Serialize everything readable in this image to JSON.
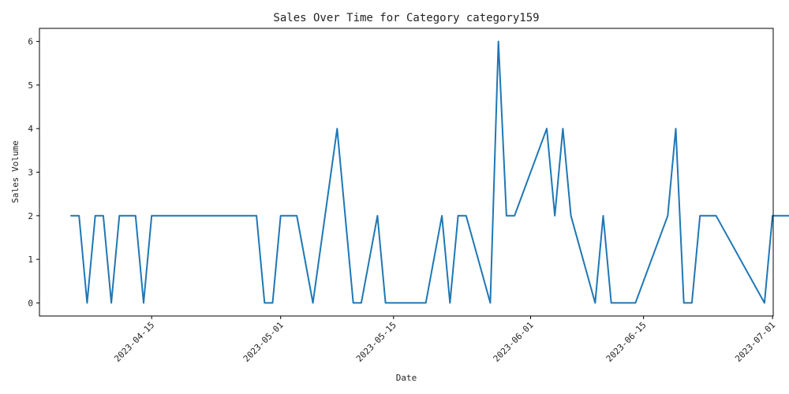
{
  "chart_data": {
    "type": "line",
    "title": "Sales Over Time for Category category159",
    "xlabel": "Date",
    "ylabel": "Sales Volume",
    "x_ticks": [
      "2023-04-15",
      "2023-05-01",
      "2023-05-15",
      "2023-06-01",
      "2023-06-15",
      "2023-07-01"
    ],
    "y_ticks": [
      0,
      1,
      2,
      3,
      4,
      5,
      6
    ],
    "xlim": [
      "2023-04-01",
      "2023-07-01"
    ],
    "ylim": [
      -0.3,
      6.3
    ],
    "grid": false,
    "color": "#1f77b4",
    "series": [
      {
        "x": [
          "2023-04-05",
          "2023-04-06",
          "2023-04-07",
          "2023-04-08",
          "2023-04-09",
          "2023-04-10",
          "2023-04-11",
          "2023-04-12",
          "2023-04-13",
          "2023-04-14",
          "2023-04-15",
          "2023-04-16",
          "2023-04-18",
          "2023-04-20",
          "2023-04-28",
          "2023-04-29",
          "2023-04-30",
          "2023-05-01",
          "2023-05-03",
          "2023-05-05",
          "2023-05-08",
          "2023-05-10",
          "2023-05-11",
          "2023-05-13",
          "2023-05-14",
          "2023-05-15",
          "2023-05-19",
          "2023-05-21",
          "2023-05-22",
          "2023-05-23",
          "2023-05-24",
          "2023-05-27",
          "2023-05-28",
          "2023-05-29",
          "2023-05-30",
          "2023-06-03",
          "2023-06-04",
          "2023-06-05",
          "2023-06-06",
          "2023-06-09",
          "2023-06-10",
          "2023-06-11",
          "2023-06-14",
          "2023-06-18",
          "2023-06-19",
          "2023-06-20",
          "2023-06-21",
          "2023-06-22",
          "2023-06-24",
          "2023-06-30",
          "2023-07-01",
          "2023-07-03"
        ],
        "values": [
          2,
          2,
          0,
          2,
          2,
          0,
          2,
          2,
          2,
          0,
          2,
          2,
          2,
          2,
          2,
          0,
          0,
          2,
          2,
          0,
          4,
          0,
          0,
          2,
          0,
          0,
          0,
          2,
          0,
          2,
          2,
          0,
          6,
          2,
          2,
          4,
          2,
          4,
          2,
          0,
          2,
          0,
          0,
          2,
          4,
          0,
          0,
          2,
          2,
          0,
          2,
          2
        ]
      }
    ]
  }
}
